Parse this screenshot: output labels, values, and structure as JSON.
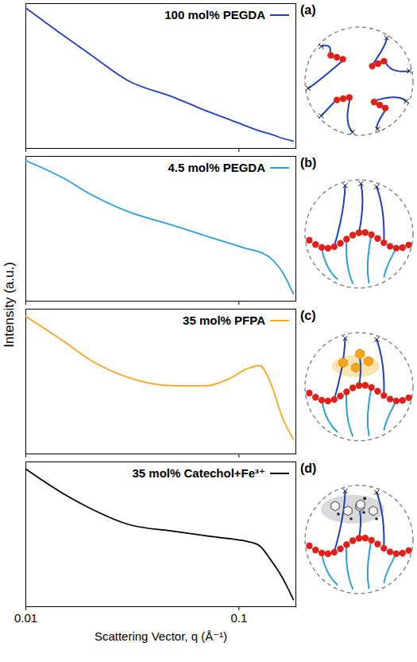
{
  "chart_data": [
    {
      "type": "line",
      "panel_label": "(a)",
      "y_label": "Intensity (a.u.)",
      "x": [
        0.01,
        0.015,
        0.02,
        0.03,
        0.05,
        0.07,
        0.09,
        0.11,
        0.125,
        0.14,
        0.16,
        0.18
      ],
      "series": [
        {
          "name": "100 mol% PEGDA",
          "color": "#1f3fbf",
          "values": [
            0.97,
            0.78,
            0.65,
            0.47,
            0.35,
            0.26,
            0.2,
            0.15,
            0.12,
            0.1,
            0.07,
            0.05
          ]
        }
      ],
      "xlim": [
        0.01,
        0.185
      ],
      "xticks": [
        0.01,
        0.1
      ],
      "ylim": [
        0,
        1
      ],
      "yticks": [],
      "log": "x",
      "legend": "upper right",
      "tick_labels": false
    },
    {
      "type": "line",
      "panel_label": "(b)",
      "x": [
        0.01,
        0.015,
        0.02,
        0.03,
        0.05,
        0.07,
        0.09,
        0.11,
        0.125,
        0.14,
        0.16,
        0.18
      ],
      "series": [
        {
          "name": "4.5 mol% PEGDA",
          "color": "#2a9fd8",
          "values": [
            0.97,
            0.85,
            0.74,
            0.62,
            0.52,
            0.45,
            0.4,
            0.36,
            0.34,
            0.3,
            0.2,
            0.05
          ]
        }
      ],
      "xlim": [
        0.01,
        0.185
      ],
      "xticks": [
        0.01,
        0.1
      ],
      "ylim": [
        0,
        1
      ],
      "yticks": [],
      "log": "x",
      "legend": "upper right",
      "tick_labels": false
    },
    {
      "type": "line",
      "panel_label": "(c)",
      "x": [
        0.01,
        0.015,
        0.02,
        0.03,
        0.05,
        0.07,
        0.09,
        0.11,
        0.125,
        0.14,
        0.16,
        0.18
      ],
      "series": [
        {
          "name": "35 mol% PFPA",
          "color": "#f5a623",
          "values": [
            0.95,
            0.78,
            0.65,
            0.53,
            0.47,
            0.47,
            0.52,
            0.59,
            0.61,
            0.5,
            0.25,
            0.1
          ]
        }
      ],
      "xlim": [
        0.01,
        0.185
      ],
      "xticks": [
        0.01,
        0.1
      ],
      "ylim": [
        0,
        1
      ],
      "yticks": [],
      "log": "x",
      "legend": "upper right",
      "tick_labels": false
    },
    {
      "type": "line",
      "panel_label": "(d)",
      "x_label": "Scattering Vector, q (Å⁻¹)",
      "x": [
        0.01,
        0.015,
        0.02,
        0.03,
        0.05,
        0.07,
        0.09,
        0.11,
        0.125,
        0.14,
        0.16,
        0.18
      ],
      "series": [
        {
          "name": "35 mol% Catechol+Fe³⁺",
          "color": "#000000",
          "values": [
            0.95,
            0.78,
            0.68,
            0.57,
            0.52,
            0.49,
            0.47,
            0.45,
            0.42,
            0.33,
            0.2,
            0.05
          ]
        }
      ],
      "xlim": [
        0.01,
        0.185
      ],
      "xticks": [
        0.01,
        0.1
      ],
      "ylim": [
        0,
        1
      ],
      "yticks": [],
      "log": "x",
      "legend": "upper right",
      "tick_labels": "x"
    }
  ]
}
